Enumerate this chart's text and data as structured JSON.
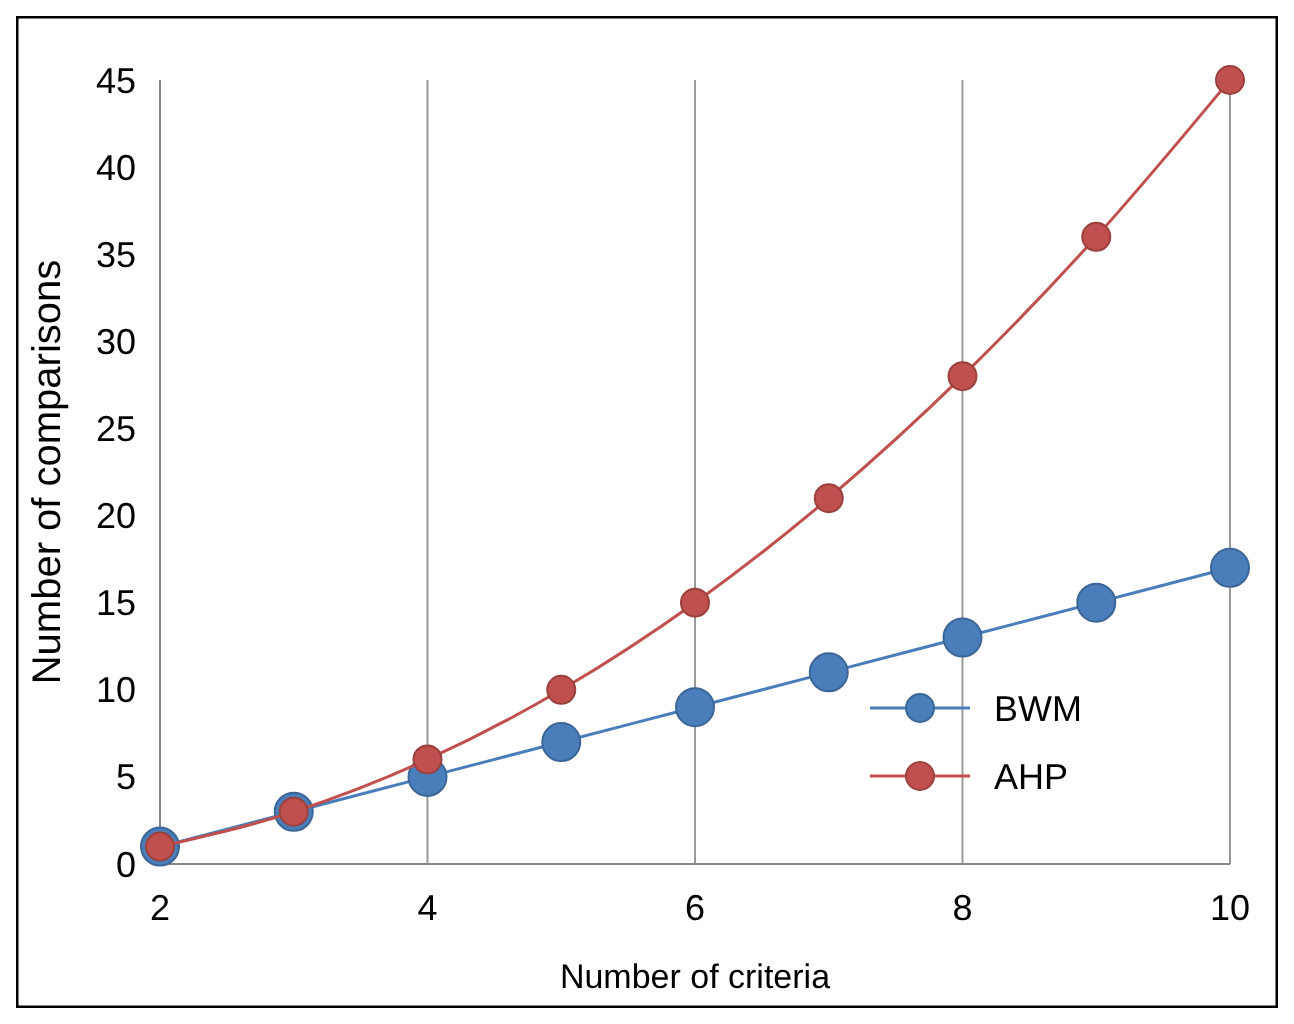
{
  "chart_data": {
    "type": "line",
    "xlabel": "Number of criteria",
    "ylabel": "Number of comparisons",
    "x": [
      2,
      3,
      4,
      5,
      6,
      7,
      8,
      9,
      10
    ],
    "series": [
      {
        "name": "BWM",
        "color": "#4a7ebb",
        "values": [
          1,
          3,
          5,
          7,
          9,
          11,
          13,
          15,
          17
        ]
      },
      {
        "name": "AHP",
        "color": "#c0504d",
        "values": [
          1,
          3,
          6,
          10,
          15,
          21,
          28,
          36,
          45
        ]
      }
    ],
    "xlim": [
      2,
      10
    ],
    "xticks": [
      2,
      4,
      6,
      8,
      10
    ],
    "ylim": [
      0,
      45
    ],
    "yticks": [
      0,
      5,
      10,
      15,
      20,
      25,
      30,
      35,
      40,
      45
    ],
    "grid": "x",
    "legend": "bottom right",
    "marker": "circle",
    "line_style": "solid"
  }
}
